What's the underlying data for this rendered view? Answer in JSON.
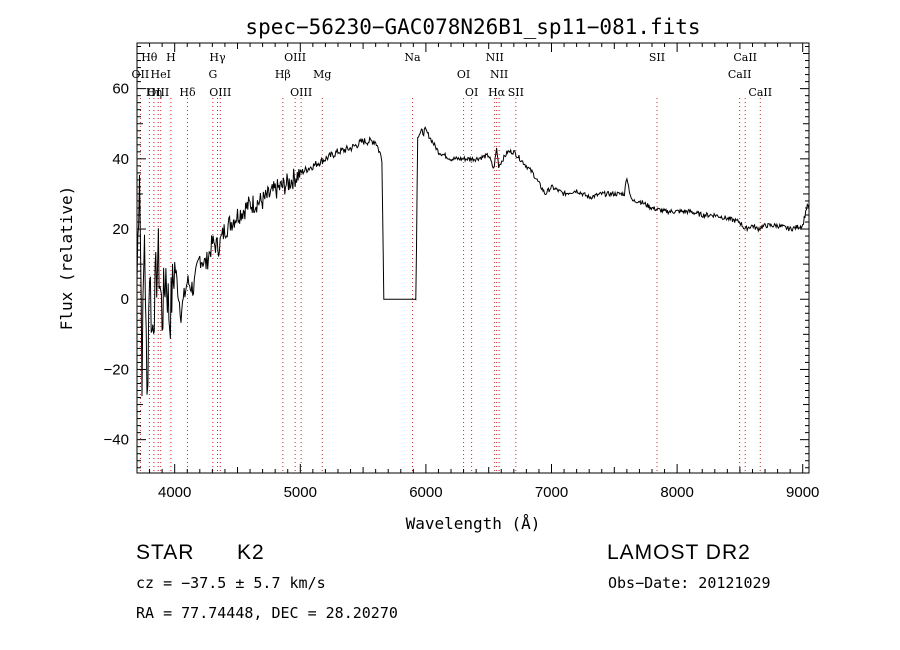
{
  "chart_data": {
    "type": "line",
    "title": "spec−56230−GAC078N26B1_sp11−081.fits",
    "xlabel": "Wavelength (Å)",
    "ylabel": "Flux (relative)",
    "xlim": [
      3700,
      9050
    ],
    "ylim": [
      -49.5,
      73
    ],
    "x_ticks": [
      4000,
      5000,
      6000,
      7000,
      8000,
      9000
    ],
    "y_ticks": [
      -40,
      -20,
      0,
      20,
      40,
      60
    ],
    "grid": false,
    "series": [
      {
        "x": [
          3700,
          3720,
          3740,
          3760,
          3780,
          3800,
          3820,
          3850,
          3870,
          3900,
          3930,
          3960,
          4000,
          4050,
          4100,
          4150,
          4200,
          4250,
          4300,
          4350,
          4400,
          4450,
          4500,
          4600,
          4700,
          4800,
          4900,
          5000,
          5100,
          5200,
          5300,
          5400,
          5500,
          5600,
          5650,
          5665,
          5800,
          5920,
          5935,
          6000,
          6050,
          6100,
          6200,
          6300,
          6400,
          6500,
          6540,
          6563,
          6580,
          6650,
          6700,
          6800,
          6850,
          6950,
          7000,
          7100,
          7200,
          7300,
          7400,
          7500,
          7580,
          7600,
          7620,
          7640,
          7700,
          7800,
          7900,
          8000,
          8100,
          8200,
          8300,
          8400,
          8500,
          8540,
          8600,
          8640,
          8700,
          8800,
          8900,
          9000,
          9030,
          9050
        ],
        "y": [
          5,
          40,
          -20,
          20,
          -30,
          10,
          -10,
          5,
          12,
          -5,
          8,
          -6,
          10,
          -4,
          5,
          3,
          12,
          10,
          16,
          15,
          20,
          22,
          24,
          27,
          28,
          31,
          33,
          36,
          38,
          40,
          42,
          43,
          45,
          45,
          40,
          0,
          0,
          0,
          47,
          48,
          45,
          42,
          40,
          40,
          40,
          41,
          37,
          43,
          38,
          42,
          42,
          38,
          36,
          30,
          32,
          30,
          31,
          29,
          30,
          30,
          30,
          35,
          31,
          28,
          28,
          26,
          25,
          25,
          25,
          24,
          24,
          23,
          22,
          20,
          21,
          20,
          21,
          21,
          20,
          21,
          26,
          27
        ]
      }
    ],
    "lines": [
      {
        "label": "Hθ",
        "x": 3798,
        "row": 0
      },
      {
        "label": "H",
        "x": 3970,
        "row": 0
      },
      {
        "label": "Hγ",
        "x": 4341,
        "row": 0
      },
      {
        "label": "OIII",
        "x": 4959,
        "row": 0
      },
      {
        "label": "Na",
        "x": 5893,
        "row": 0
      },
      {
        "label": "NII",
        "x": 6548,
        "row": 0
      },
      {
        "label": "SII",
        "x": 7840,
        "row": 0
      },
      {
        "label": "CaII",
        "x": 8542,
        "row": 0
      },
      {
        "label": "OII",
        "x": 3727,
        "row": 1
      },
      {
        "label": "HeI",
        "x": 3889,
        "row": 1
      },
      {
        "label": "G",
        "x": 4304,
        "row": 1
      },
      {
        "label": "Hβ",
        "x": 4861,
        "row": 1
      },
      {
        "label": "Mg",
        "x": 5175,
        "row": 1
      },
      {
        "label": "OI",
        "x": 6300,
        "row": 1
      },
      {
        "label": "NII",
        "x": 6583,
        "row": 1
      },
      {
        "label": "CaII",
        "x": 8498,
        "row": 1
      },
      {
        "label": "OIII",
        "x": 3869,
        "row": 2
      },
      {
        "label": "Hη",
        "x": 3835,
        "row": 2
      },
      {
        "label": "Hδ",
        "x": 4102,
        "row": 2
      },
      {
        "label": "OIII",
        "x": 4363,
        "row": 2
      },
      {
        "label": "OIII",
        "x": 5007,
        "row": 2
      },
      {
        "label": "OI",
        "x": 6364,
        "row": 2
      },
      {
        "label": "Hα",
        "x": 6563,
        "row": 2
      },
      {
        "label": "SII",
        "x": 6716,
        "row": 2
      },
      {
        "label": "CaII",
        "x": 8662,
        "row": 2
      }
    ],
    "line_colors": {
      "dotted": "#cc2222",
      "spectrum": "#000000"
    }
  },
  "info": {
    "object_class": "STAR",
    "subclass": "K2",
    "survey": "LAMOST DR2",
    "redshift": "cz = −37.5 ± 5.7 km/s",
    "obs_date": "Obs−Date: 20121029",
    "coords": "RA =  77.74448, DEC =  28.20270"
  }
}
